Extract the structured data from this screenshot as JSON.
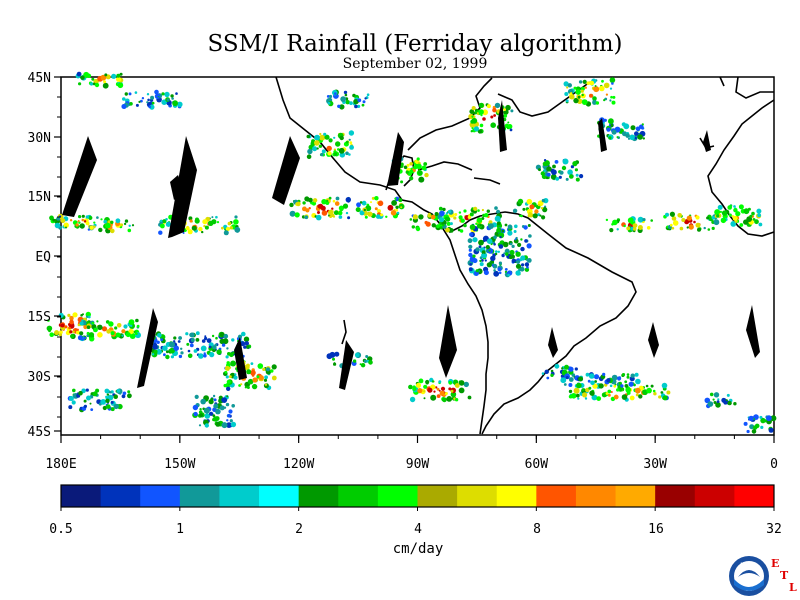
{
  "title": "SSM/I Rainfall (Ferriday algorithm)",
  "date": "September 02, 1999",
  "lat_labels": [
    "45N",
    "30N",
    "15N",
    "EQ",
    "15S",
    "30S",
    "45S"
  ],
  "lon_labels": [
    "180E",
    "150W",
    "120W",
    "90W",
    "60W",
    "30W",
    "0"
  ],
  "colorbar": {
    "colors": [
      "#0a1a7a",
      "#0033bb",
      "#1155ff",
      "#119999",
      "#00cccc",
      "#00ffff",
      "#009900",
      "#00cc00",
      "#00ff00",
      "#aaaa00",
      "#dddd00",
      "#ffff00",
      "#ff5500",
      "#ff8800",
      "#ffaa00",
      "#990000",
      "#cc0000",
      "#ff0000"
    ],
    "tick_labels": [
      "0.5",
      "1",
      "2",
      "4",
      "8",
      "16",
      "32"
    ],
    "unit": "cm/day"
  },
  "logo": {
    "text": "NOAA",
    "etl": [
      "E",
      "T",
      "L"
    ]
  }
}
